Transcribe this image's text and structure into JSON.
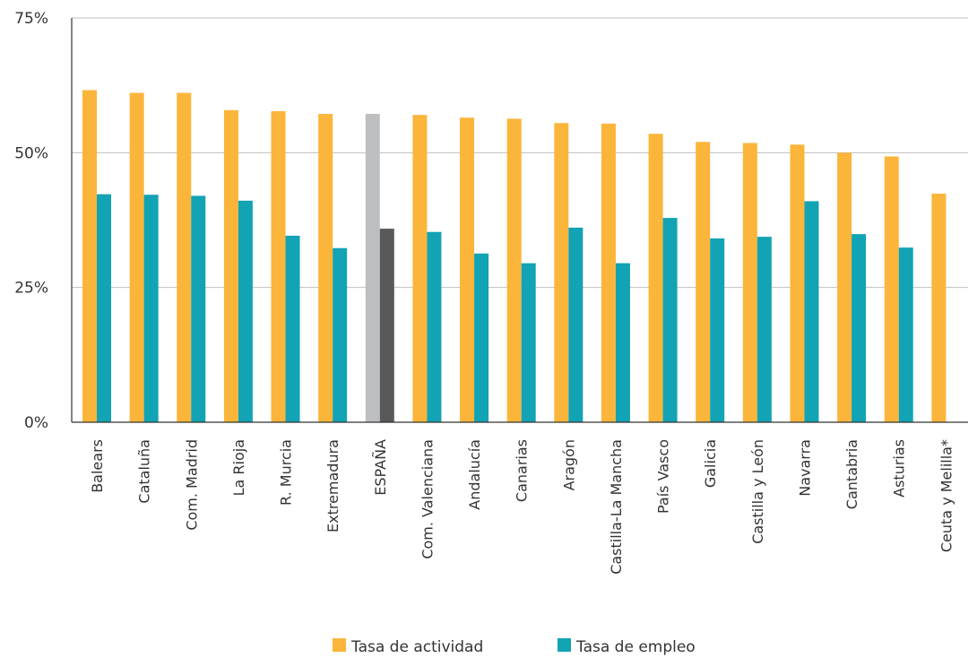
{
  "chart_data": {
    "type": "bar",
    "categories": [
      "Balears",
      "Cataluña",
      "Com. Madrid",
      "La Rioja",
      "R. Murcia",
      "Extremadura",
      "ESPAÑA",
      "Com. Valenciana",
      "Andalucía",
      "Canarias",
      "Aragón",
      "Castilla-La Mancha",
      "País Vasco",
      "Galicia",
      "Castilla y León",
      "Navarra",
      "Cantabria",
      "Asturias",
      "Ceuta y Melilla*"
    ],
    "series": [
      {
        "name": "Tasa de actividad",
        "color": "#FBB53A",
        "values": [
          61.6,
          61.1,
          61.1,
          57.9,
          57.7,
          57.2,
          57.2,
          57.0,
          56.5,
          56.3,
          55.5,
          55.4,
          53.5,
          52.0,
          51.8,
          51.5,
          50.0,
          49.3,
          42.4
        ]
      },
      {
        "name": "Tasa de empleo",
        "color": "#12A3B4",
        "values": [
          42.3,
          42.2,
          42.0,
          41.1,
          34.6,
          32.3,
          35.9,
          35.3,
          31.3,
          29.5,
          36.1,
          29.5,
          37.9,
          34.1,
          34.4,
          41.0,
          34.9,
          32.4,
          null
        ]
      }
    ],
    "highlight": {
      "category": "ESPAÑA",
      "colors": [
        "#BDBEC0",
        "#58595B"
      ]
    },
    "yticks": [
      "0%",
      "25%",
      "50%",
      "75%"
    ],
    "ytick_values": [
      0,
      25,
      50,
      75
    ],
    "ylim": [
      0,
      75
    ],
    "grid": true,
    "legend_position": "bottom-center"
  }
}
